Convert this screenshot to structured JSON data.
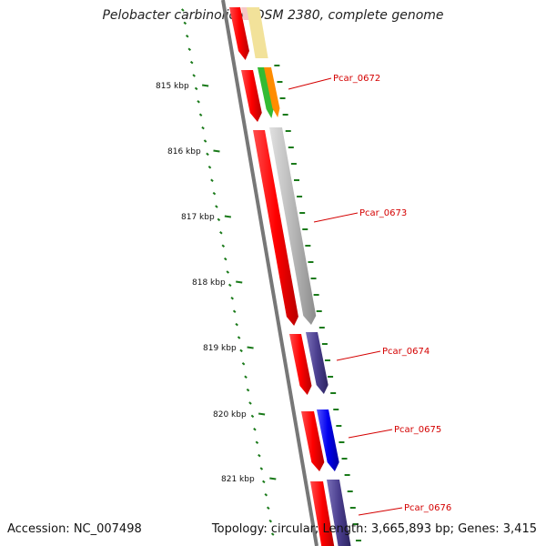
{
  "title": "Pelobacter carbinolicus DSM 2380, complete genome",
  "footer": {
    "accession": "Accession: NC_007498",
    "summary": "Topology: circular; Length: 3,665,893 bp; Genes: 3,415"
  },
  "tick_labels": [
    "815 kbp",
    "816 kbp",
    "817 kbp",
    "818 kbp",
    "819 kbp",
    "820 kbp",
    "821 kbp"
  ],
  "gene_labels": [
    "Pcar_0672",
    "Pcar_0673",
    "Pcar_0674",
    "Pcar_0675",
    "Pcar_0676"
  ],
  "colors": {
    "backbone": "#808080",
    "cds": "#ff0000",
    "tick": "#1a7a1a",
    "label": "#d40000",
    "cog_grey": "#b8b8b8",
    "cog_purple": "#4b3f8f",
    "cog_blue": "#0000ee",
    "cog_green": "#33bb33",
    "cog_orange": "#ff8c00",
    "cog_yellow": "#f2e29a",
    "cog_pink": "#f6c7c7"
  }
}
